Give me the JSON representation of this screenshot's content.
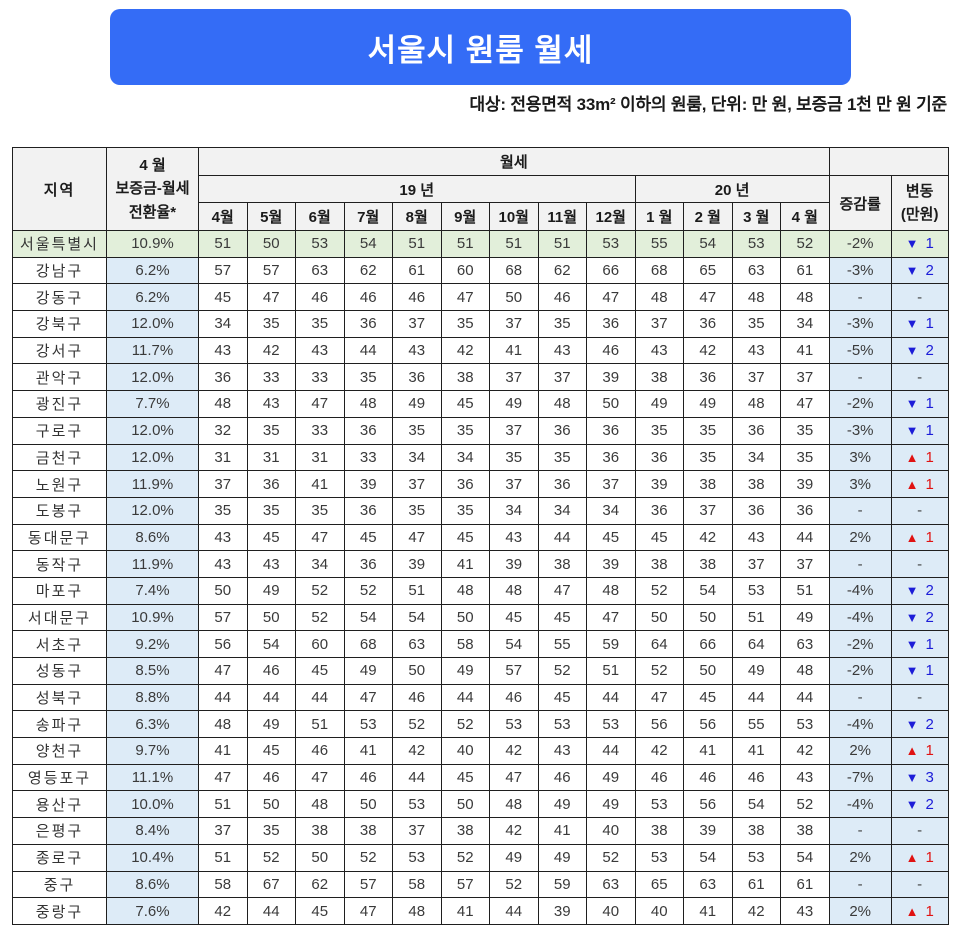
{
  "page": {
    "title_banner": "서울시 원룸 월세",
    "subtitle": "대상: 전용면적 33m² 이하의 원룸, 단위: 만 원, 보증금 1천 만 원 기준"
  },
  "colors": {
    "banner_blue": "#346cf6",
    "header_gray": "#f2f2f2",
    "seoul_row_green": "#e2efda",
    "light_blue": "#ddebf7",
    "decrease_blue": "#1c1cd8",
    "increase_red": "#e01212"
  },
  "icons": {
    "down": "▼",
    "up": "▲"
  },
  "chart_data": {
    "type": "table",
    "title": "서울시 원룸 월세",
    "note": "대상: 전용면적 33m² 이하의 원룸, 단위: 만 원, 보증금 1천 만 원 기준",
    "header": {
      "region": "지역",
      "conversion_lines": [
        "4 월",
        "보증금-월세",
        "전환율*"
      ],
      "rent_group": "월세",
      "year_groups": [
        {
          "label": "19 년",
          "span": 9
        },
        {
          "label": "20 년",
          "span": 4
        }
      ],
      "months": [
        "4월",
        "5월",
        "6월",
        "7월",
        "8월",
        "9월",
        "10월",
        "11월",
        "12월",
        "1 월",
        "2 월",
        "3 월",
        "4 월"
      ],
      "change_rate": "증감률",
      "change_amount_lines": [
        "변동",
        "(만원)"
      ]
    },
    "rows": [
      {
        "region": "서울특별시",
        "conversion": "10.9%",
        "rent": [
          51,
          50,
          53,
          54,
          51,
          51,
          51,
          51,
          53,
          55,
          54,
          53,
          52
        ],
        "change_rate": "-2%",
        "change_dir": "down",
        "change_amount": "1",
        "highlight": true
      },
      {
        "region": "강남구",
        "conversion": "6.2%",
        "rent": [
          57,
          57,
          63,
          62,
          61,
          60,
          68,
          62,
          66,
          68,
          65,
          63,
          61
        ],
        "change_rate": "-3%",
        "change_dir": "down",
        "change_amount": "2",
        "highlight": false
      },
      {
        "region": "강동구",
        "conversion": "6.2%",
        "rent": [
          45,
          47,
          46,
          46,
          46,
          47,
          50,
          46,
          47,
          48,
          47,
          48,
          48
        ],
        "change_rate": "-",
        "change_dir": "none",
        "change_amount": "-",
        "highlight": false
      },
      {
        "region": "강북구",
        "conversion": "12.0%",
        "rent": [
          34,
          35,
          35,
          36,
          37,
          35,
          37,
          35,
          36,
          37,
          36,
          35,
          34
        ],
        "change_rate": "-3%",
        "change_dir": "down",
        "change_amount": "1",
        "highlight": false
      },
      {
        "region": "강서구",
        "conversion": "11.7%",
        "rent": [
          43,
          42,
          43,
          44,
          43,
          42,
          41,
          43,
          46,
          43,
          42,
          43,
          41
        ],
        "change_rate": "-5%",
        "change_dir": "down",
        "change_amount": "2",
        "highlight": false
      },
      {
        "region": "관악구",
        "conversion": "12.0%",
        "rent": [
          36,
          33,
          33,
          35,
          36,
          38,
          37,
          37,
          39,
          38,
          36,
          37,
          37
        ],
        "change_rate": "-",
        "change_dir": "none",
        "change_amount": "-",
        "highlight": false
      },
      {
        "region": "광진구",
        "conversion": "7.7%",
        "rent": [
          48,
          43,
          47,
          48,
          49,
          45,
          49,
          48,
          50,
          49,
          49,
          48,
          47
        ],
        "change_rate": "-2%",
        "change_dir": "down",
        "change_amount": "1",
        "highlight": false
      },
      {
        "region": "구로구",
        "conversion": "12.0%",
        "rent": [
          32,
          35,
          33,
          36,
          35,
          35,
          37,
          36,
          36,
          35,
          35,
          36,
          35
        ],
        "change_rate": "-3%",
        "change_dir": "down",
        "change_amount": "1",
        "highlight": false
      },
      {
        "region": "금천구",
        "conversion": "12.0%",
        "rent": [
          31,
          31,
          31,
          33,
          34,
          34,
          35,
          35,
          36,
          36,
          35,
          34,
          35
        ],
        "change_rate": "3%",
        "change_dir": "up",
        "change_amount": "1",
        "highlight": false
      },
      {
        "region": "노원구",
        "conversion": "11.9%",
        "rent": [
          37,
          36,
          41,
          39,
          37,
          36,
          37,
          36,
          37,
          39,
          38,
          38,
          39
        ],
        "change_rate": "3%",
        "change_dir": "up",
        "change_amount": "1",
        "highlight": false
      },
      {
        "region": "도봉구",
        "conversion": "12.0%",
        "rent": [
          35,
          35,
          35,
          36,
          35,
          35,
          34,
          34,
          34,
          36,
          37,
          36,
          36
        ],
        "change_rate": "-",
        "change_dir": "none",
        "change_amount": "-",
        "highlight": false
      },
      {
        "region": "동대문구",
        "conversion": "8.6%",
        "rent": [
          43,
          45,
          47,
          45,
          47,
          45,
          43,
          44,
          45,
          45,
          42,
          43,
          44
        ],
        "change_rate": "2%",
        "change_dir": "up",
        "change_amount": "1",
        "highlight": false
      },
      {
        "region": "동작구",
        "conversion": "11.9%",
        "rent": [
          43,
          43,
          34,
          36,
          39,
          41,
          39,
          38,
          39,
          38,
          38,
          37,
          37
        ],
        "change_rate": "-",
        "change_dir": "none",
        "change_amount": "-",
        "highlight": false
      },
      {
        "region": "마포구",
        "conversion": "7.4%",
        "rent": [
          50,
          49,
          52,
          52,
          51,
          48,
          48,
          47,
          48,
          52,
          54,
          53,
          51
        ],
        "change_rate": "-4%",
        "change_dir": "down",
        "change_amount": "2",
        "highlight": false
      },
      {
        "region": "서대문구",
        "conversion": "10.9%",
        "rent": [
          57,
          50,
          52,
          54,
          54,
          50,
          45,
          45,
          47,
          50,
          50,
          51,
          49
        ],
        "change_rate": "-4%",
        "change_dir": "down",
        "change_amount": "2",
        "highlight": false
      },
      {
        "region": "서초구",
        "conversion": "9.2%",
        "rent": [
          56,
          54,
          60,
          68,
          63,
          58,
          54,
          55,
          59,
          64,
          66,
          64,
          63
        ],
        "change_rate": "-2%",
        "change_dir": "down",
        "change_amount": "1",
        "highlight": false
      },
      {
        "region": "성동구",
        "conversion": "8.5%",
        "rent": [
          47,
          46,
          45,
          49,
          50,
          49,
          57,
          52,
          51,
          52,
          50,
          49,
          48
        ],
        "change_rate": "-2%",
        "change_dir": "down",
        "change_amount": "1",
        "highlight": false
      },
      {
        "region": "성북구",
        "conversion": "8.8%",
        "rent": [
          44,
          44,
          44,
          47,
          46,
          44,
          46,
          45,
          44,
          47,
          45,
          44,
          44
        ],
        "change_rate": "-",
        "change_dir": "none",
        "change_amount": "-",
        "highlight": false
      },
      {
        "region": "송파구",
        "conversion": "6.3%",
        "rent": [
          48,
          49,
          51,
          53,
          52,
          52,
          53,
          53,
          53,
          56,
          56,
          55,
          53
        ],
        "change_rate": "-4%",
        "change_dir": "down",
        "change_amount": "2",
        "highlight": false
      },
      {
        "region": "양천구",
        "conversion": "9.7%",
        "rent": [
          41,
          45,
          46,
          41,
          42,
          40,
          42,
          43,
          44,
          42,
          41,
          41,
          42
        ],
        "change_rate": "2%",
        "change_dir": "up",
        "change_amount": "1",
        "highlight": false
      },
      {
        "region": "영등포구",
        "conversion": "11.1%",
        "rent": [
          47,
          46,
          47,
          46,
          44,
          45,
          47,
          46,
          49,
          46,
          46,
          46,
          43
        ],
        "change_rate": "-7%",
        "change_dir": "down",
        "change_amount": "3",
        "highlight": false
      },
      {
        "region": "용산구",
        "conversion": "10.0%",
        "rent": [
          51,
          50,
          48,
          50,
          53,
          50,
          48,
          49,
          49,
          53,
          56,
          54,
          52
        ],
        "change_rate": "-4%",
        "change_dir": "down",
        "change_amount": "2",
        "highlight": false
      },
      {
        "region": "은평구",
        "conversion": "8.4%",
        "rent": [
          37,
          35,
          38,
          38,
          37,
          38,
          42,
          41,
          40,
          38,
          39,
          38,
          38
        ],
        "change_rate": "-",
        "change_dir": "none",
        "change_amount": "-",
        "highlight": false
      },
      {
        "region": "종로구",
        "conversion": "10.4%",
        "rent": [
          51,
          52,
          50,
          52,
          53,
          52,
          49,
          49,
          52,
          53,
          54,
          53,
          54
        ],
        "change_rate": "2%",
        "change_dir": "up",
        "change_amount": "1",
        "highlight": false
      },
      {
        "region": "중구",
        "conversion": "8.6%",
        "rent": [
          58,
          67,
          62,
          57,
          58,
          57,
          52,
          59,
          63,
          65,
          63,
          61,
          61
        ],
        "change_rate": "-",
        "change_dir": "none",
        "change_amount": "-",
        "highlight": false
      },
      {
        "region": "중랑구",
        "conversion": "7.6%",
        "rent": [
          42,
          44,
          45,
          47,
          48,
          41,
          44,
          39,
          40,
          40,
          41,
          42,
          43
        ],
        "change_rate": "2%",
        "change_dir": "up",
        "change_amount": "1",
        "highlight": false
      }
    ]
  }
}
